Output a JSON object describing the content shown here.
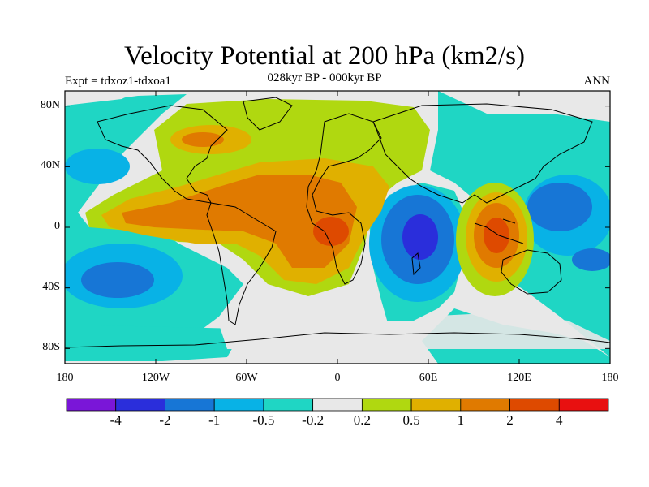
{
  "header": {
    "title": "Velocity Potential at 200 hPa (km2/s)",
    "subtitle": "028kyr BP - 000kyr BP",
    "left_label": "Expt = tdxoz1-tdxoa1",
    "right_label": "ANN"
  },
  "map": {
    "projection": "cylindrical-equidistant",
    "lon_range": [
      -180,
      180
    ],
    "lat_range": [
      -90,
      90
    ],
    "lat_ticks": [
      {
        "value": 80,
        "label": "80N"
      },
      {
        "value": 40,
        "label": "40N"
      },
      {
        "value": 0,
        "label": "0"
      },
      {
        "value": -40,
        "label": "40S"
      },
      {
        "value": -80,
        "label": "80S"
      }
    ],
    "lon_ticks": [
      {
        "value": -180,
        "label": "180"
      },
      {
        "value": -120,
        "label": "120W"
      },
      {
        "value": -60,
        "label": "60W"
      },
      {
        "value": 0,
        "label": "0"
      },
      {
        "value": 60,
        "label": "60E"
      },
      {
        "value": 120,
        "label": "120E"
      },
      {
        "value": 180,
        "label": "180"
      }
    ]
  },
  "colorbar": {
    "colors": [
      "#7a16d8",
      "#2a2edb",
      "#1776d6",
      "#08b2e6",
      "#1fd6c4",
      "#e8e8e8",
      "#b0d810",
      "#e0b000",
      "#e07a00",
      "#de4a00",
      "#e81010"
    ],
    "labels": [
      "-4",
      "-2",
      "-1",
      "-0.5",
      "-0.2",
      "0.2",
      "0.5",
      "1",
      "2",
      "4"
    ]
  }
}
